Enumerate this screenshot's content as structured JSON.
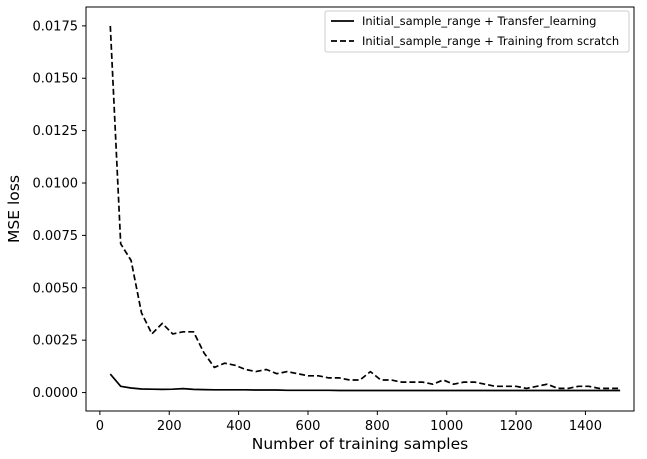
{
  "chart_data": {
    "type": "line",
    "title": "",
    "xlabel": "Number of training samples",
    "ylabel": "MSE loss",
    "xlim": [
      -40,
      1540
    ],
    "ylim": [
      -0.00088,
      0.0184
    ],
    "xticks": [
      0,
      200,
      400,
      600,
      800,
      1000,
      1200,
      1400
    ],
    "xtick_labels": [
      "0",
      "200",
      "400",
      "600",
      "800",
      "1000",
      "1200",
      "1400"
    ],
    "yticks": [
      0.0,
      0.0025,
      0.005,
      0.0075,
      0.01,
      0.0125,
      0.015,
      0.0175
    ],
    "ytick_labels": [
      "0.0000",
      "0.0025",
      "0.0050",
      "0.0075",
      "0.0100",
      "0.0125",
      "0.0150",
      "0.0175"
    ],
    "grid": false,
    "legend_position": "top-right",
    "series": [
      {
        "name": "Initial_sample_range + Transfer_learning",
        "style": "solid",
        "color": "#000000",
        "x": [
          30,
          60,
          90,
          120,
          150,
          180,
          210,
          240,
          270,
          300,
          330,
          360,
          390,
          420,
          450,
          480,
          510,
          540,
          570,
          600,
          630,
          660,
          690,
          720,
          750,
          780,
          810,
          840,
          870,
          900,
          930,
          960,
          990,
          1020,
          1050,
          1080,
          1110,
          1140,
          1170,
          1200,
          1230,
          1260,
          1290,
          1320,
          1350,
          1380,
          1410,
          1440,
          1470,
          1500
        ],
        "values": [
          0.00088,
          0.0003,
          0.00022,
          0.00017,
          0.00016,
          0.00015,
          0.00016,
          0.00019,
          0.00015,
          0.00014,
          0.00013,
          0.00013,
          0.00013,
          0.00013,
          0.00012,
          0.00012,
          0.00012,
          0.00011,
          0.00011,
          0.00011,
          0.00011,
          0.00011,
          0.0001,
          0.0001,
          0.0001,
          0.0001,
          0.0001,
          0.0001,
          0.0001,
          0.0001,
          0.0001,
          0.0001,
          0.0001,
          0.0001,
          0.0001,
          0.0001,
          0.0001,
          0.0001,
          0.0001,
          0.0001,
          0.0001,
          0.0001,
          0.0001,
          0.0001,
          0.0001,
          0.0001,
          0.0001,
          0.0001,
          0.0001,
          0.0001
        ]
      },
      {
        "name": "Initial_sample_range + Training from scratch",
        "style": "dashed",
        "color": "#000000",
        "x": [
          30,
          60,
          90,
          120,
          150,
          180,
          210,
          240,
          270,
          300,
          330,
          360,
          390,
          420,
          450,
          480,
          510,
          540,
          570,
          600,
          630,
          660,
          690,
          720,
          750,
          780,
          810,
          840,
          870,
          900,
          930,
          960,
          990,
          1020,
          1050,
          1080,
          1110,
          1140,
          1170,
          1200,
          1230,
          1260,
          1290,
          1320,
          1350,
          1380,
          1410,
          1440,
          1470,
          1500
        ],
        "values": [
          0.0175,
          0.0071,
          0.0063,
          0.0038,
          0.0028,
          0.0033,
          0.0028,
          0.0029,
          0.0029,
          0.0019,
          0.0012,
          0.0014,
          0.0013,
          0.0011,
          0.001,
          0.0011,
          0.0009,
          0.001,
          0.0009,
          0.0008,
          0.0008,
          0.0007,
          0.0007,
          0.0006,
          0.0006,
          0.001,
          0.0006,
          0.0006,
          0.0005,
          0.0005,
          0.0005,
          0.0004,
          0.0006,
          0.0004,
          0.0005,
          0.0005,
          0.0004,
          0.0003,
          0.0003,
          0.0003,
          0.0002,
          0.0003,
          0.0004,
          0.0002,
          0.0002,
          0.0003,
          0.0003,
          0.0002,
          0.0002,
          0.0002
        ]
      }
    ]
  }
}
